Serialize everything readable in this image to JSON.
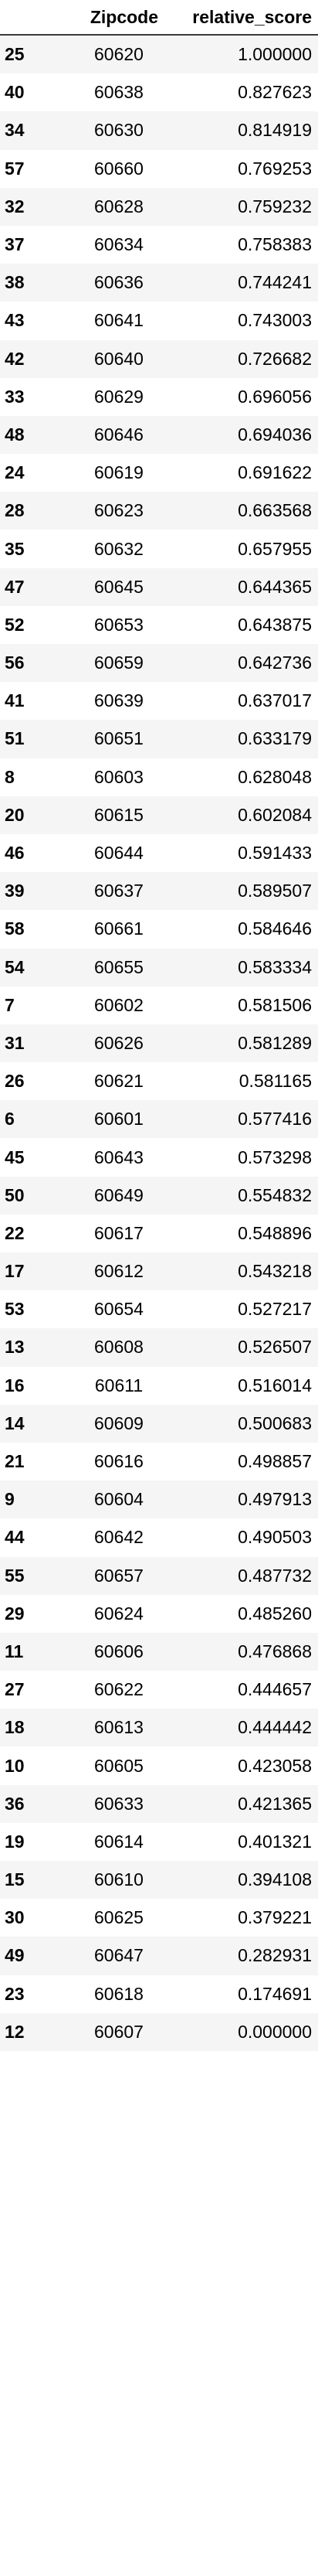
{
  "table": {
    "columns": [
      "",
      "Zipcode",
      "relative_score"
    ],
    "rows": [
      {
        "index": "25",
        "zipcode": "60620",
        "relative_score": "1.000000"
      },
      {
        "index": "40",
        "zipcode": "60638",
        "relative_score": "0.827623"
      },
      {
        "index": "34",
        "zipcode": "60630",
        "relative_score": "0.814919"
      },
      {
        "index": "57",
        "zipcode": "60660",
        "relative_score": "0.769253"
      },
      {
        "index": "32",
        "zipcode": "60628",
        "relative_score": "0.759232"
      },
      {
        "index": "37",
        "zipcode": "60634",
        "relative_score": "0.758383"
      },
      {
        "index": "38",
        "zipcode": "60636",
        "relative_score": "0.744241"
      },
      {
        "index": "43",
        "zipcode": "60641",
        "relative_score": "0.743003"
      },
      {
        "index": "42",
        "zipcode": "60640",
        "relative_score": "0.726682"
      },
      {
        "index": "33",
        "zipcode": "60629",
        "relative_score": "0.696056"
      },
      {
        "index": "48",
        "zipcode": "60646",
        "relative_score": "0.694036"
      },
      {
        "index": "24",
        "zipcode": "60619",
        "relative_score": "0.691622"
      },
      {
        "index": "28",
        "zipcode": "60623",
        "relative_score": "0.663568"
      },
      {
        "index": "35",
        "zipcode": "60632",
        "relative_score": "0.657955"
      },
      {
        "index": "47",
        "zipcode": "60645",
        "relative_score": "0.644365"
      },
      {
        "index": "52",
        "zipcode": "60653",
        "relative_score": "0.643875"
      },
      {
        "index": "56",
        "zipcode": "60659",
        "relative_score": "0.642736"
      },
      {
        "index": "41",
        "zipcode": "60639",
        "relative_score": "0.637017"
      },
      {
        "index": "51",
        "zipcode": "60651",
        "relative_score": "0.633179"
      },
      {
        "index": "8",
        "zipcode": "60603",
        "relative_score": "0.628048"
      },
      {
        "index": "20",
        "zipcode": "60615",
        "relative_score": "0.602084"
      },
      {
        "index": "46",
        "zipcode": "60644",
        "relative_score": "0.591433"
      },
      {
        "index": "39",
        "zipcode": "60637",
        "relative_score": "0.589507"
      },
      {
        "index": "58",
        "zipcode": "60661",
        "relative_score": "0.584646"
      },
      {
        "index": "54",
        "zipcode": "60655",
        "relative_score": "0.583334"
      },
      {
        "index": "7",
        "zipcode": "60602",
        "relative_score": "0.581506"
      },
      {
        "index": "31",
        "zipcode": "60626",
        "relative_score": "0.581289"
      },
      {
        "index": "26",
        "zipcode": "60621",
        "relative_score": "0.581165"
      },
      {
        "index": "6",
        "zipcode": "60601",
        "relative_score": "0.577416"
      },
      {
        "index": "45",
        "zipcode": "60643",
        "relative_score": "0.573298"
      },
      {
        "index": "50",
        "zipcode": "60649",
        "relative_score": "0.554832"
      },
      {
        "index": "22",
        "zipcode": "60617",
        "relative_score": "0.548896"
      },
      {
        "index": "17",
        "zipcode": "60612",
        "relative_score": "0.543218"
      },
      {
        "index": "53",
        "zipcode": "60654",
        "relative_score": "0.527217"
      },
      {
        "index": "13",
        "zipcode": "60608",
        "relative_score": "0.526507"
      },
      {
        "index": "16",
        "zipcode": "60611",
        "relative_score": "0.516014"
      },
      {
        "index": "14",
        "zipcode": "60609",
        "relative_score": "0.500683"
      },
      {
        "index": "21",
        "zipcode": "60616",
        "relative_score": "0.498857"
      },
      {
        "index": "9",
        "zipcode": "60604",
        "relative_score": "0.497913"
      },
      {
        "index": "44",
        "zipcode": "60642",
        "relative_score": "0.490503"
      },
      {
        "index": "55",
        "zipcode": "60657",
        "relative_score": "0.487732"
      },
      {
        "index": "29",
        "zipcode": "60624",
        "relative_score": "0.485260"
      },
      {
        "index": "11",
        "zipcode": "60606",
        "relative_score": "0.476868"
      },
      {
        "index": "27",
        "zipcode": "60622",
        "relative_score": "0.444657"
      },
      {
        "index": "18",
        "zipcode": "60613",
        "relative_score": "0.444442"
      },
      {
        "index": "10",
        "zipcode": "60605",
        "relative_score": "0.423058"
      },
      {
        "index": "36",
        "zipcode": "60633",
        "relative_score": "0.421365"
      },
      {
        "index": "19",
        "zipcode": "60614",
        "relative_score": "0.401321"
      },
      {
        "index": "15",
        "zipcode": "60610",
        "relative_score": "0.394108"
      },
      {
        "index": "30",
        "zipcode": "60625",
        "relative_score": "0.379221"
      },
      {
        "index": "49",
        "zipcode": "60647",
        "relative_score": "0.282931"
      },
      {
        "index": "23",
        "zipcode": "60618",
        "relative_score": "0.174691"
      },
      {
        "index": "12",
        "zipcode": "60607",
        "relative_score": "0.000000"
      }
    ]
  },
  "colors": {
    "header_border": "#3a3a3a",
    "row_stripe": "#f5f5f5",
    "background": "#ffffff"
  }
}
